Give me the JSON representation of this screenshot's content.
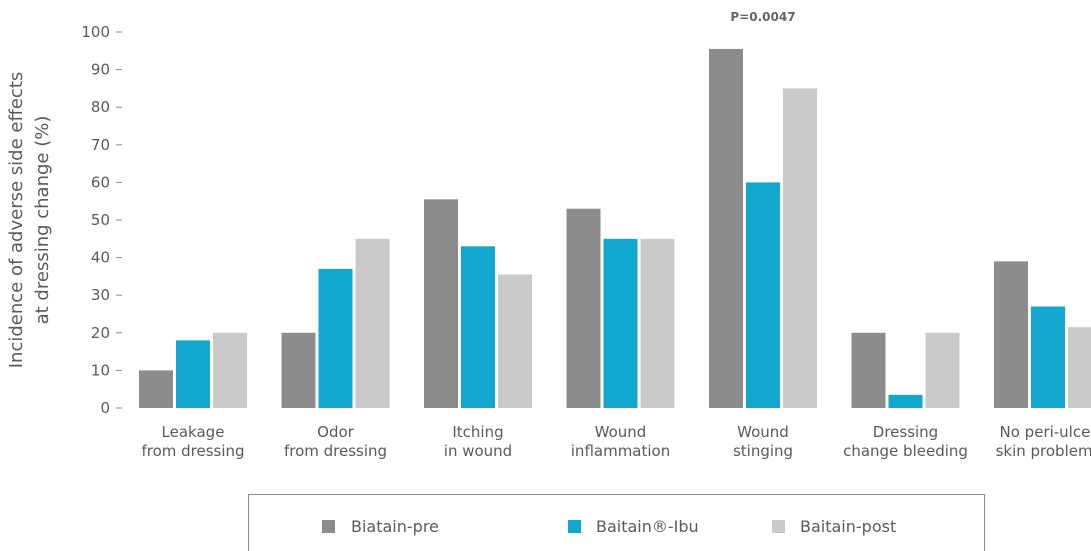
{
  "chart_data": {
    "type": "bar",
    "title": "",
    "xlabel": "",
    "ylabel_lines": [
      "Incidence of adverse side effects",
      "at dressing change (%)"
    ],
    "ylim": [
      0,
      100
    ],
    "yticks": [
      0,
      10,
      20,
      30,
      40,
      50,
      60,
      70,
      80,
      90,
      100
    ],
    "categories": [
      [
        "Leakage",
        "from dressing"
      ],
      [
        "Odor",
        "from dressing"
      ],
      [
        "Itching",
        "in wound"
      ],
      [
        "Wound",
        "inflammation"
      ],
      [
        "Wound",
        "stinging"
      ],
      [
        "Dressing",
        "change bleeding"
      ],
      [
        "No peri-ulcer",
        "skin problems"
      ]
    ],
    "series": [
      {
        "name": "Biatain-pre",
        "color": "#8c8c8c",
        "values": [
          10,
          20,
          55.5,
          53,
          95.5,
          20,
          39
        ]
      },
      {
        "name": "Baitain®-Ibu",
        "color": "#12a7cf",
        "values": [
          18,
          37,
          43,
          45,
          60,
          3.5,
          27
        ]
      },
      {
        "name": "Baitain-post",
        "color": "#c9c9c9",
        "values": [
          20,
          45,
          35.5,
          45,
          85,
          20,
          21.5
        ]
      }
    ],
    "annotations": [
      {
        "category_index": 4,
        "text": "P=0.0047"
      }
    ],
    "legend_position": "bottom",
    "grid": false
  }
}
